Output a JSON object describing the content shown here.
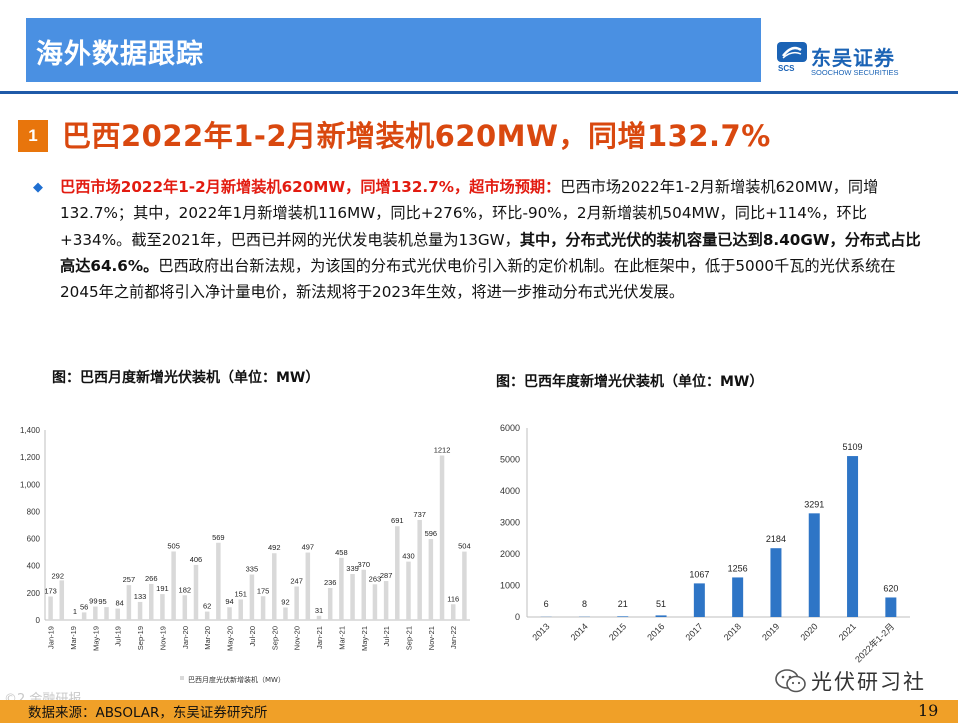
{
  "header": {
    "title": "海外数据跟踪"
  },
  "logo": {
    "mark_text": "SCS",
    "cn": "东吴证券",
    "en": "SOOCHOW SECURITIES"
  },
  "section": {
    "number": "1",
    "title": "巴西2022年1-2月新增装机620MW，同增132.7%"
  },
  "body": {
    "lead_bold": "巴西市场2022年1-2月新增装机620MW，同增132.7%，超市场预期：",
    "part1": "巴西市场2022年1-2月新增装机620MW，同增132.7%；其中，2022年1月新增装机116MW，同比+276%，环比-90%，2月新增装机504MW，同比+114%，环比+334%。截至2021年，巴西已并网的光伏发电装机总量为13GW，",
    "bold1": "其中，分布式光伏的装机容量已达到8.40GW，分布式占比高达64.6%。",
    "part2": "巴西政府出台新法规，为该国的分布式光伏电价引入新的定价机制。在此框架中，低于5000千瓦的光伏系统在2045年之前都将引入净计量电价，新法规将于2023年生效，将进一步推动分布式光伏发展。"
  },
  "chart_left_title": "图：巴西月度新增光伏装机（单位：MW）",
  "chart_right_title": "图：巴西年度新增光伏装机（单位：MW）",
  "footer": {
    "source": "数据来源：ABSOLAR，东吴证券研究所",
    "page": "19"
  },
  "wechat": {
    "label": "光伏研习社"
  },
  "watermark": "©2 金融研报",
  "colors": {
    "header": "#4a90e2",
    "accent": "#e8750c",
    "title_red": "#d9480f",
    "text_red": "#e21b10",
    "bar_gray": "#d9d9d9",
    "bar_blue": "#2e75c6",
    "footer": "#f0a028"
  },
  "chart_data": [
    {
      "type": "bar",
      "title": "图：巴西月度新增光伏装机（单位：MW）",
      "legend": "巴西月度光伏新增装机（MW）",
      "x": [
        "Jan-19",
        "Feb-19",
        "Mar-19",
        "Apr-19",
        "May-19",
        "Jun-19",
        "Jul-19",
        "Aug-19",
        "Sep-19",
        "Oct-19",
        "Nov-19",
        "Dec-19",
        "Jan-20",
        "Feb-20",
        "Mar-20",
        "Apr-20",
        "May-20",
        "Jun-20",
        "Jul-20",
        "Aug-20",
        "Sep-20",
        "Oct-20",
        "Nov-20",
        "Dec-20",
        "Jan-21",
        "Feb-21",
        "Mar-21",
        "Apr-21",
        "May-21",
        "Jun-21",
        "Jul-21",
        "Aug-21",
        "Sep-21",
        "Oct-21",
        "Nov-21",
        "Dec-21",
        "Jan-22",
        "Feb-22"
      ],
      "tick_labels": [
        "Jan-19",
        "Mar-19",
        "May-19",
        "Jul-19",
        "Sep-19",
        "Nov-19",
        "Jan-20",
        "Mar-20",
        "May-20",
        "Jul-20",
        "Sep-20",
        "Nov-20",
        "Jan-21",
        "Mar-21",
        "May-21",
        "Jul-21",
        "Sep-21",
        "Nov-21",
        "Jan-22"
      ],
      "values": [
        173,
        292,
        1,
        56,
        99,
        95,
        84,
        257,
        133,
        266,
        191,
        505,
        182,
        406,
        62,
        569,
        94,
        151,
        335,
        175,
        492,
        92,
        247,
        497,
        31,
        236,
        458,
        339,
        370,
        263,
        287,
        691,
        430,
        737,
        596,
        1212,
        116,
        504
      ],
      "ylim": [
        0,
        1400
      ],
      "yticks": [
        "0",
        "200",
        "400",
        "600",
        "800",
        "1,000",
        "1,200",
        "1,400"
      ]
    },
    {
      "type": "bar",
      "title": "图：巴西年度新增光伏装机（单位：MW）",
      "categories": [
        "2013",
        "2014",
        "2015",
        "2016",
        "2017",
        "2018",
        "2019",
        "2020",
        "2021",
        "2022年1-2月"
      ],
      "values": [
        6,
        8,
        21,
        51,
        1067,
        1256,
        2184,
        3291,
        5109,
        620
      ],
      "ylim": [
        0,
        6000
      ],
      "yticks": [
        "0",
        "1000",
        "2000",
        "3000",
        "4000",
        "5000",
        "6000"
      ]
    }
  ]
}
